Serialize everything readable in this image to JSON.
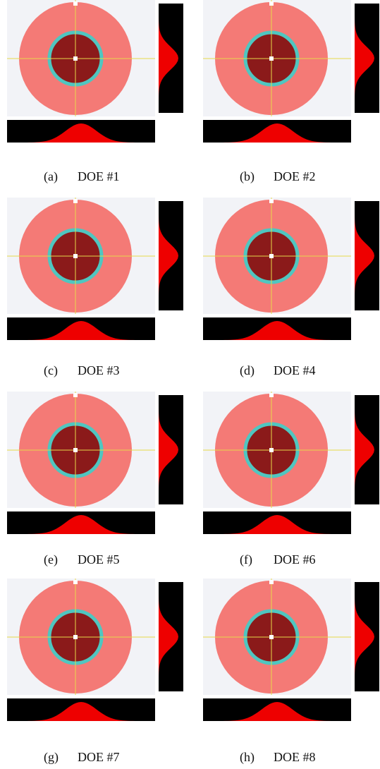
{
  "figure": {
    "panels": [
      {
        "label": "(a)",
        "name": "DOE #1"
      },
      {
        "label": "(b)",
        "name": "DOE #2"
      },
      {
        "label": "(c)",
        "name": "DOE #3"
      },
      {
        "label": "(d)",
        "name": "DOE #4"
      },
      {
        "label": "(e)",
        "name": "DOE #5"
      },
      {
        "label": "(f)",
        "name": "DOE #6"
      },
      {
        "label": "(g)",
        "name": "DOE #7"
      },
      {
        "label": "(h)",
        "name": "DOE #8"
      }
    ]
  }
}
